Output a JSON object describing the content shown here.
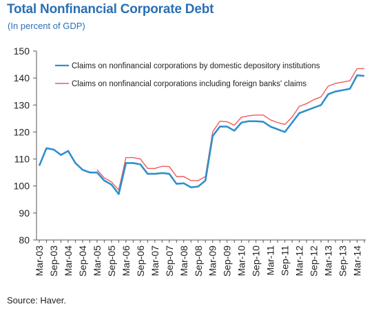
{
  "header": {
    "title": "Total Nonfinancial Corporate Debt",
    "subtitle": "(In percent of GDP)"
  },
  "footer": {
    "source": "Source: Haver."
  },
  "colors": {
    "series_domestic": "#2e8fcd",
    "series_foreign": "#ef5a5a",
    "title": "#2a6fb5",
    "axis": "#222222"
  },
  "chart_data": {
    "type": "line",
    "title": "Total Nonfinancial Corporate Debt",
    "subtitle": "(In percent of GDP)",
    "xlabel": "",
    "ylabel": "",
    "ylim": [
      80,
      150
    ],
    "yticks": [
      80,
      90,
      100,
      110,
      120,
      130,
      140,
      150
    ],
    "grid": false,
    "legend": "top",
    "x_tick_labels": [
      "Mar-03",
      "Sep-03",
      "Mar-04",
      "Sep-04",
      "Mar-05",
      "Sep-05",
      "Mar-06",
      "Sep-06",
      "Mar-07",
      "Sep-07",
      "Mar-08",
      "Sep-08",
      "Mar-09",
      "Sep-09",
      "Mar-10",
      "Sep-10",
      "Mar-11",
      "Sep-11",
      "Mar-12",
      "Sep-12",
      "Mar-13",
      "Sep-13",
      "Mar-14"
    ],
    "x": [
      "Mar-03",
      "Jun-03",
      "Sep-03",
      "Dec-03",
      "Mar-04",
      "Jun-04",
      "Sep-04",
      "Dec-04",
      "Mar-05",
      "Jun-05",
      "Sep-05",
      "Dec-05",
      "Mar-06",
      "Jun-06",
      "Sep-06",
      "Dec-06",
      "Mar-07",
      "Jun-07",
      "Sep-07",
      "Dec-07",
      "Mar-08",
      "Jun-08",
      "Sep-08",
      "Dec-08",
      "Mar-09",
      "Jun-09",
      "Sep-09",
      "Dec-09",
      "Mar-10",
      "Jun-10",
      "Sep-10",
      "Dec-10",
      "Mar-11",
      "Jun-11",
      "Sep-11",
      "Dec-11",
      "Mar-12",
      "Jun-12",
      "Sep-12",
      "Dec-12",
      "Mar-13",
      "Jun-13",
      "Sep-13",
      "Dec-13",
      "Mar-14",
      "Jun-14"
    ],
    "series": [
      {
        "name": "Claims on nonfinancial corporations by domestic depository institutions",
        "color": "#2e8fcd",
        "values": [
          107.5,
          114,
          113.5,
          111.5,
          113,
          108.5,
          106,
          105,
          105,
          102,
          100.5,
          97,
          108.5,
          108.5,
          108,
          104.5,
          104.5,
          104.8,
          104.5,
          100.8,
          101,
          99.5,
          99.8,
          102,
          118.5,
          122,
          122,
          120.5,
          123.5,
          124,
          124,
          123.8,
          122,
          121,
          120,
          123.5,
          127,
          128,
          129,
          130,
          134,
          135,
          135.5,
          136,
          141,
          140.8
        ]
      },
      {
        "name": "Claims on nonfinancial corporations including foreign banks' claims",
        "color": "#ef5a5a",
        "values": [
          null,
          null,
          null,
          null,
          null,
          null,
          null,
          null,
          106,
          103,
          101.5,
          98.5,
          110.5,
          110.5,
          110,
          106.5,
          106.5,
          107.3,
          107.2,
          103.5,
          103.5,
          102,
          102,
          103.5,
          120,
          124,
          123.8,
          122.5,
          125.5,
          126,
          126.3,
          126.3,
          124.5,
          123.5,
          122.8,
          125.5,
          129.5,
          130.5,
          132,
          133,
          137,
          138,
          138.5,
          139,
          143.5,
          143.5
        ]
      }
    ]
  }
}
